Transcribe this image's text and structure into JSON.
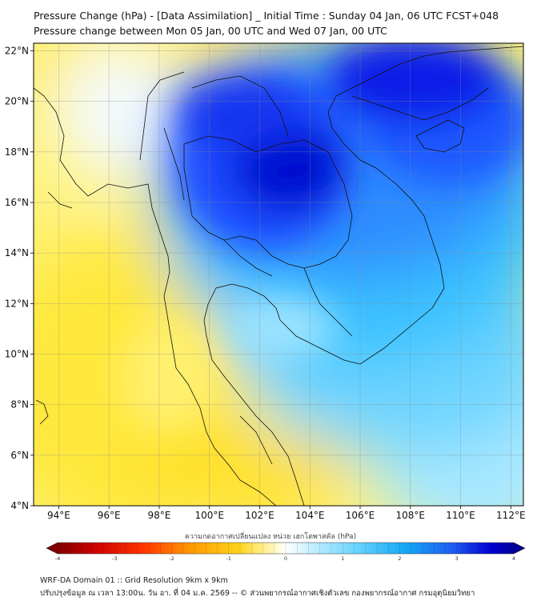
{
  "header": {
    "title_line1": "Pressure Change (hPa) - [Data Assimilation] _ Initial Time : Sunday 04 Jan, 06 UTC FCST+048",
    "title_line2": "Pressure change between Mon 05 Jan, 00 UTC and Wed 07 Jan, 00 UTC"
  },
  "map": {
    "lat_labels": [
      "22°N",
      "20°N",
      "18°N",
      "16°N",
      "14°N",
      "12°N",
      "10°N",
      "8°N",
      "6°N",
      "4°N"
    ],
    "lon_labels": [
      "94°E",
      "96°E",
      "98°E",
      "100°E",
      "102°E",
      "104°E",
      "106°E",
      "108°E",
      "110°E",
      "112°E"
    ],
    "lat_values": [
      22,
      20,
      18,
      16,
      14,
      12,
      10,
      8,
      6,
      4
    ],
    "lon_values": [
      94,
      96,
      98,
      100,
      102,
      104,
      106,
      108,
      110,
      112
    ],
    "lat_range": [
      4,
      22.3
    ],
    "lon_range": [
      93,
      112.5
    ]
  },
  "colorbar": {
    "label": "ความกดอากาศเปลี่ยนแปลง หน่วย เฮกโตพาสคัล (hPa)",
    "tick_labels": [
      "-4",
      "-3",
      "-2",
      "-1",
      "0",
      "1",
      "2",
      "3",
      "4"
    ],
    "tick_values": [
      -4,
      -3,
      -2,
      -1,
      0,
      1,
      2,
      3,
      4
    ],
    "range": [
      -4,
      4
    ],
    "colors": [
      "#8b0000",
      "#e31a1c",
      "#ff8c00",
      "#ffd700",
      "#fff176",
      "#ffffff",
      "#b3ecff",
      "#29b6f6",
      "#1565ff",
      "#0000cd",
      "#00008b"
    ]
  },
  "footer": {
    "line1": "WRF-DA Domain 01 :: Grid Resolution 9km x 9km",
    "line2": "ปรับปรุงข้อมูล ณ เวลา 13:00น. วัน อา. ที่ 04 ม.ค. 2569 -- © ส่วนพยากรณ์อากาศเชิงตัวเลข กองพยากรณ์อากาศ กรมอุตุนิยมวิทยา"
  }
}
